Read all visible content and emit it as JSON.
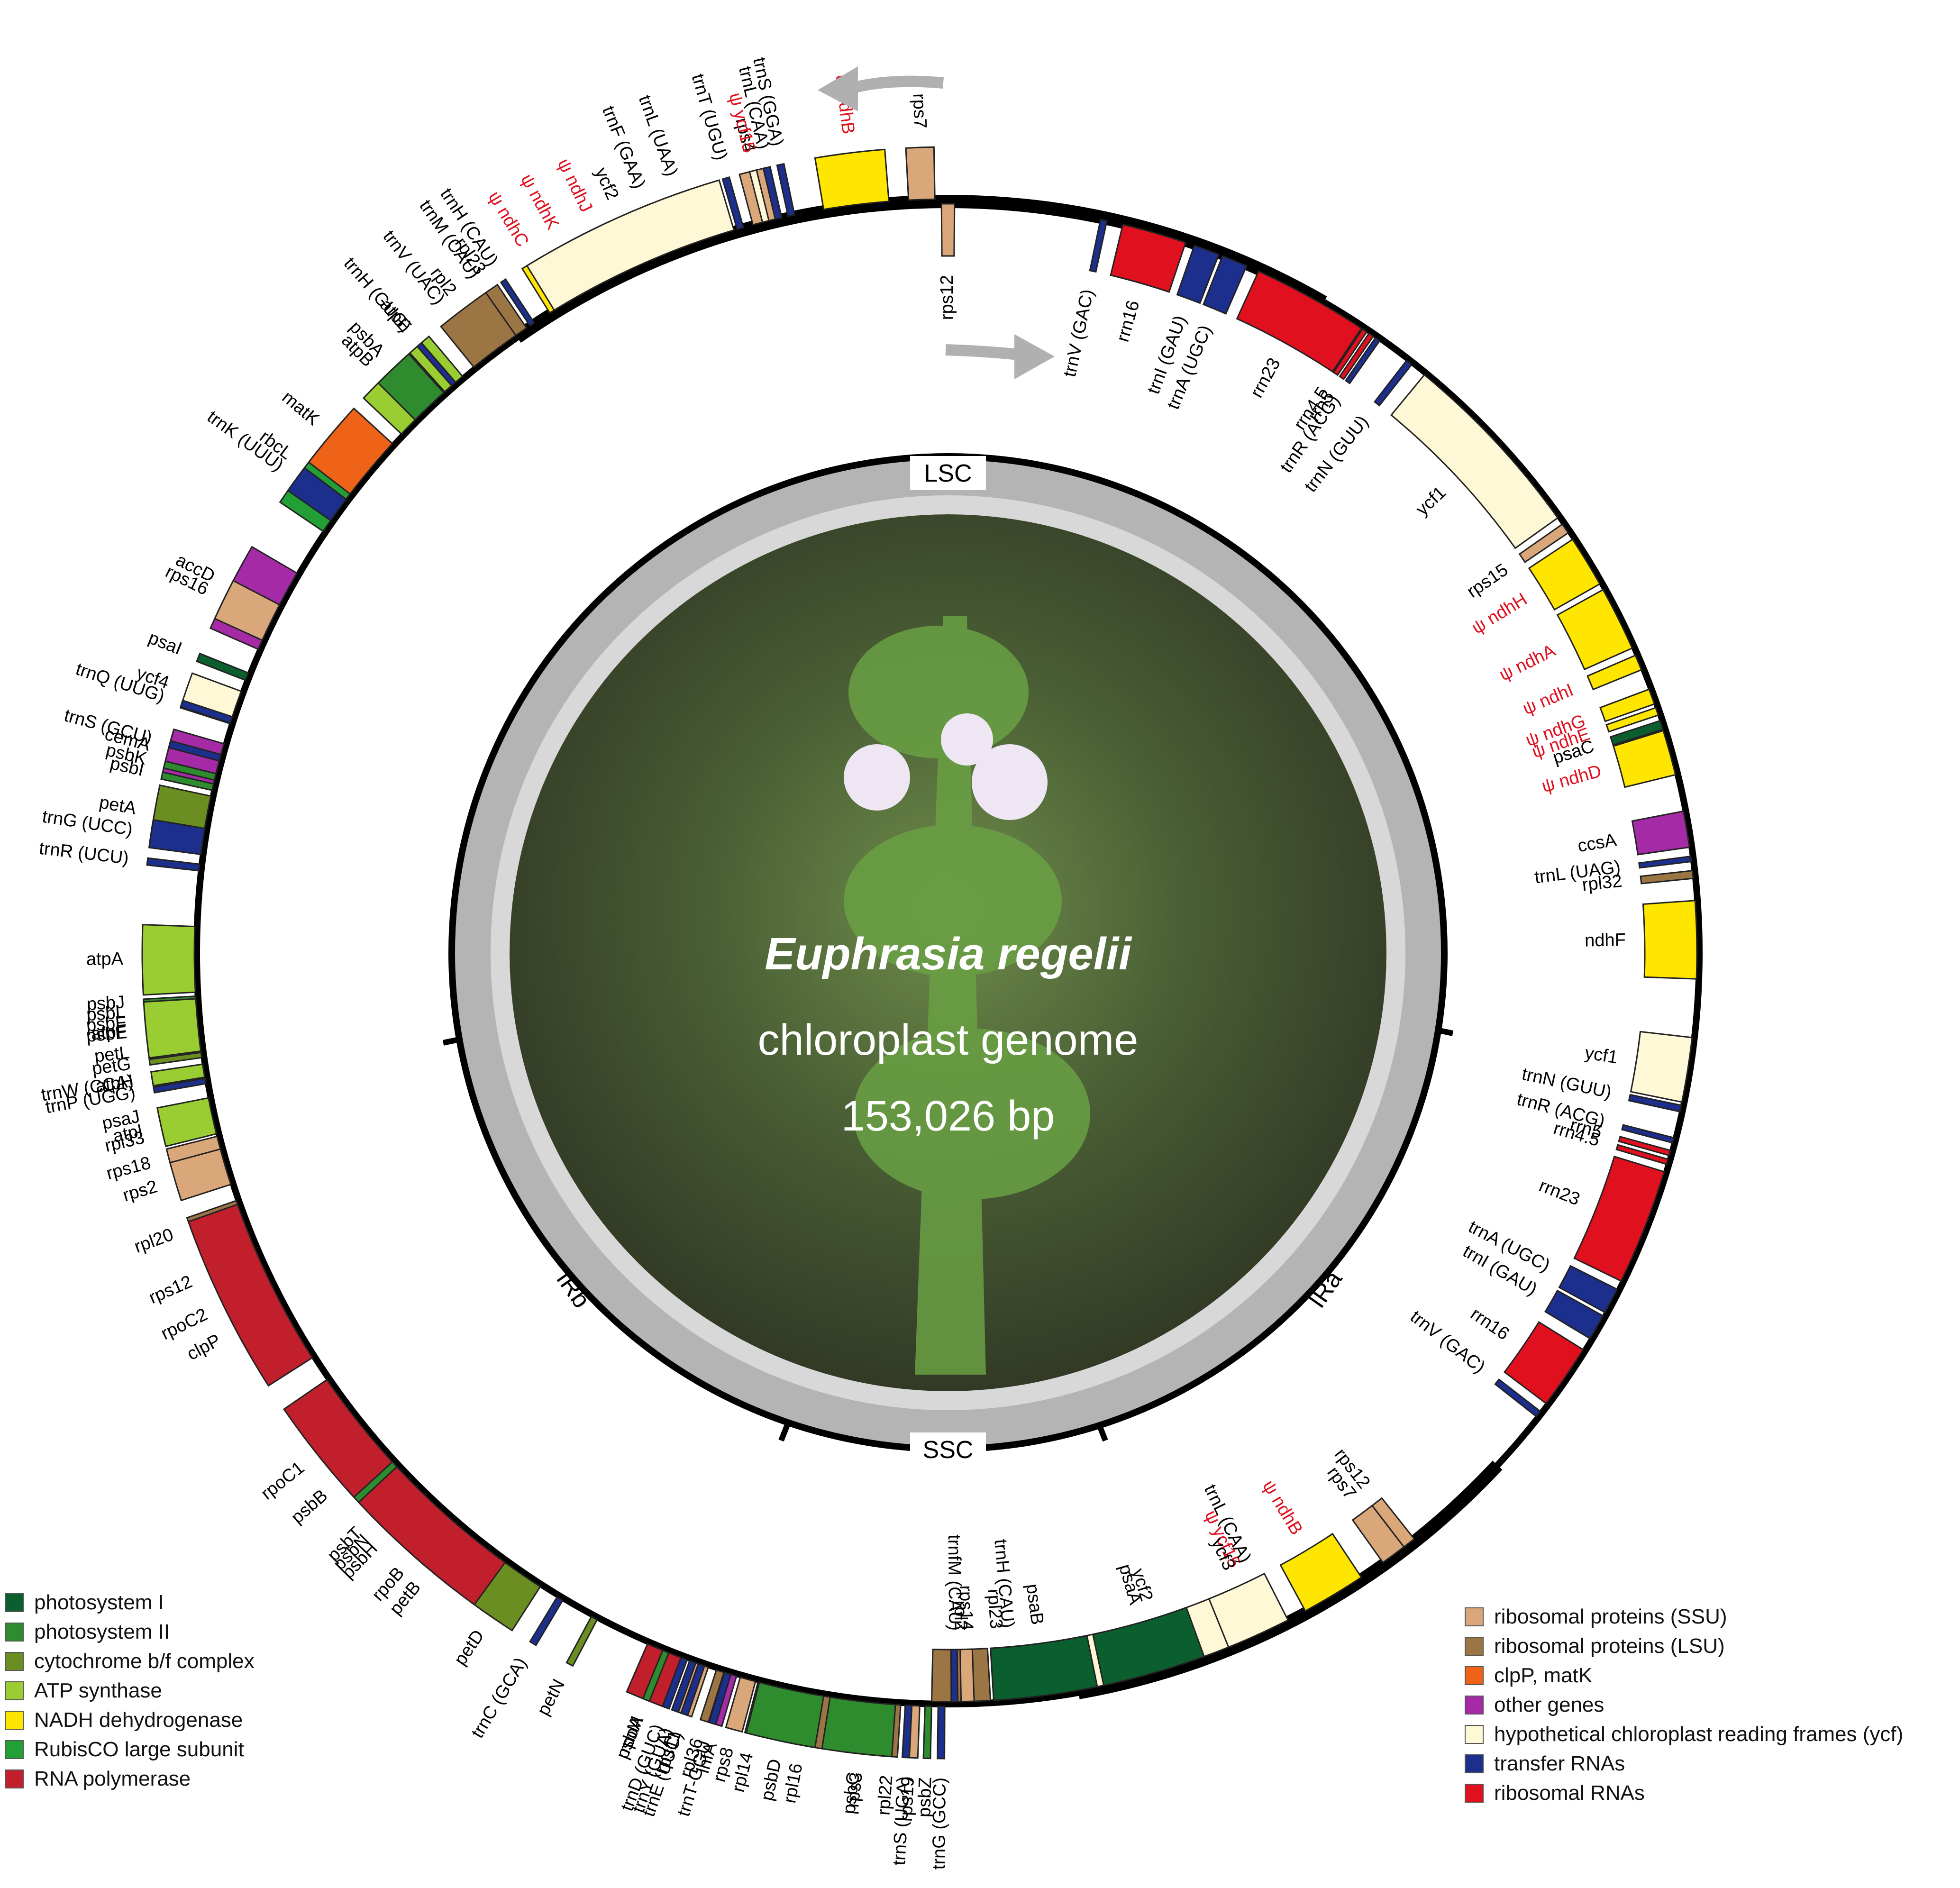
{
  "title": {
    "species": "Euphrasia regelii",
    "subtitle": "chloroplast genome",
    "length": "153,026 bp"
  },
  "regions": [
    {
      "label": "LSC"
    },
    {
      "label": "IRa"
    },
    {
      "label": "SSC"
    },
    {
      "label": "IRb"
    }
  ],
  "legend_left": [
    {
      "label": "photosystem I",
      "color": "#0b5e2e"
    },
    {
      "label": "photosystem II",
      "color": "#2e8b2e"
    },
    {
      "label": "cytochrome b/f complex",
      "color": "#6b8e23"
    },
    {
      "label": "ATP synthase",
      "color": "#9acd32"
    },
    {
      "label": "NADH dehydrogenase",
      "color": "#ffe600"
    },
    {
      "label": "RubisCO large subunit",
      "color": "#22a035"
    },
    {
      "label": "RNA polymerase",
      "color": "#c01f2b"
    }
  ],
  "legend_right": [
    {
      "label": "ribosomal proteins (SSU)",
      "color": "#d9a77a"
    },
    {
      "label": "ribosomal proteins (LSU)",
      "color": "#9c7545"
    },
    {
      "label": "clpP, matK",
      "color": "#ee6318"
    },
    {
      "label": "other genes",
      "color": "#a52aa5"
    },
    {
      "label": "hypothetical chloroplast reading frames (ycf)",
      "color": "#fff8d6"
    },
    {
      "label": "transfer RNAs",
      "color": "#1c2f8c"
    },
    {
      "label": "ribosomal RNAs",
      "color": "#e0101e"
    }
  ],
  "genes": [
    {
      "name": "trnS (GGA)",
      "cat": "trna",
      "a": -12.0,
      "w": 0.5
    },
    {
      "name": "trnL (UAA)",
      "cat": "trna",
      "a": -19.6,
      "w": 0.6
    },
    {
      "name": "trnF (GAA)",
      "cat": "trna",
      "a": -22.0,
      "w": 0.5
    },
    {
      "name": "trnM (CAU)",
      "cat": "trna",
      "a": -35.0,
      "w": 0.5
    },
    {
      "name": "ψ ndhJ",
      "cat": "ndh",
      "a": -26.0,
      "w": 2.2,
      "pseudo": true
    },
    {
      "name": "ψ ndhK",
      "cat": "ndh",
      "a": -28.6,
      "w": 2.2,
      "pseudo": true
    },
    {
      "name": "ψ ndhC",
      "cat": "ndh",
      "a": -31.0,
      "w": 1.8,
      "pseudo": true
    },
    {
      "name": "rps4",
      "cat": "ssu",
      "a": -14.0,
      "w": 2.0
    },
    {
      "name": "trnT (UGU)",
      "cat": "trna",
      "a": -16.0,
      "w": 0.5
    },
    {
      "name": "trnV (UAC)",
      "cat": "trna",
      "a": -38.0,
      "w": 0.6
    },
    {
      "name": "atpE",
      "cat": "atp",
      "a": -41.0,
      "w": 1.8
    },
    {
      "name": "atpB",
      "cat": "atp",
      "a": -44.5,
      "w": 4.0
    },
    {
      "name": "rbcL",
      "cat": "rubisco",
      "a": -53.0,
      "w": 6.0
    },
    {
      "name": "accD",
      "cat": "other",
      "a": -63.0,
      "w": 6.5
    },
    {
      "name": "psaI",
      "cat": "ps1",
      "a": -68.5,
      "w": 0.6
    },
    {
      "name": "ycf4",
      "cat": "ycf",
      "a": -71.0,
      "w": 2.6
    },
    {
      "name": "cemA",
      "cat": "other",
      "a": -75.5,
      "w": 3.2
    },
    {
      "name": "petA",
      "cat": "cyt",
      "a": -80.0,
      "w": 4.0
    },
    {
      "name": "psbJ",
      "cat": "ps2",
      "a": -93.5,
      "w": 0.4
    },
    {
      "name": "psbL",
      "cat": "ps2",
      "a": -94.2,
      "w": 0.4
    },
    {
      "name": "psbF",
      "cat": "ps2",
      "a": -94.9,
      "w": 0.4
    },
    {
      "name": "psbE",
      "cat": "ps2",
      "a": -95.6,
      "w": 0.5
    },
    {
      "name": "petL",
      "cat": "cyt",
      "a": -97.0,
      "w": 0.4
    },
    {
      "name": "petG",
      "cat": "cyt",
      "a": -97.8,
      "w": 0.4
    },
    {
      "name": "trnW (CCA)",
      "cat": "trna",
      "a": -99.0,
      "w": 0.4
    },
    {
      "name": "trnP (UGG)",
      "cat": "trna",
      "a": -99.8,
      "w": 0.4
    },
    {
      "name": "psaJ",
      "cat": "ps1",
      "a": -101.5,
      "w": 0.5
    },
    {
      "name": "rpl33",
      "cat": "lsu",
      "a": -103.0,
      "w": 1.0
    },
    {
      "name": "rps18",
      "cat": "ssu",
      "a": -104.8,
      "w": 1.4
    },
    {
      "name": "rpl20",
      "cat": "lsu",
      "a": -110.0,
      "w": 1.6
    },
    {
      "name": "rps12",
      "cat": "ssu",
      "a": -113.5,
      "w": 0.7
    },
    {
      "name": "clpP",
      "cat": "clp",
      "a": -118.0,
      "w": 5.0
    },
    {
      "name": "psbB",
      "cat": "ps2",
      "a": -131.0,
      "w": 4.5
    },
    {
      "name": "psbT",
      "cat": "ps2",
      "a": -134.5,
      "w": 0.4
    },
    {
      "name": "psbN",
      "cat": "ps2",
      "a": -135.2,
      "w": 0.4
    },
    {
      "name": "psbH",
      "cat": "ps2",
      "a": -136.0,
      "w": 0.4
    },
    {
      "name": "petB",
      "cat": "cyt",
      "a": -140.0,
      "w": 3.8
    },
    {
      "name": "petD",
      "cat": "cyt",
      "a": -145.5,
      "w": 3.5
    },
    {
      "name": "rpoA",
      "cat": "rpo",
      "a": -158.0,
      "w": 3.0
    },
    {
      "name": "rps11",
      "cat": "ssu",
      "a": -160.8,
      "w": 1.3
    },
    {
      "name": "rpl36",
      "cat": "lsu",
      "a": -162.4,
      "w": 0.6
    },
    {
      "name": "infA",
      "cat": "other",
      "a": -163.4,
      "w": 0.6
    },
    {
      "name": "rps8",
      "cat": "ssu",
      "a": -164.6,
      "w": 1.2
    },
    {
      "name": "rpl14",
      "cat": "lsu",
      "a": -166.0,
      "w": 1.2
    },
    {
      "name": "rpl16",
      "cat": "lsu",
      "a": -169.5,
      "w": 3.5
    },
    {
      "name": "rps3",
      "cat": "ssu",
      "a": -173.7,
      "w": 2.5
    },
    {
      "name": "rpl22",
      "cat": "lsu",
      "a": -175.8,
      "w": 1.2
    },
    {
      "name": "rps19",
      "cat": "ssu",
      "a": -177.3,
      "w": 1.1
    },
    {
      "name": "rpl2",
      "cat": "lsu",
      "a": -181.0,
      "w": 4.5
    },
    {
      "name": "rpl23",
      "cat": "lsu",
      "a": -184.0,
      "w": 1.0
    },
    {
      "name": "trnH (CAU)",
      "cat": "trna",
      "a": -185.0,
      "w": 0.4
    },
    {
      "name": "ycf2",
      "cat": "ycf",
      "a": -197.0,
      "w": 15.0
    },
    {
      "name": "ψ ycf15",
      "cat": "ycf",
      "a": -205.0,
      "w": 0.5,
      "pseudo": true
    },
    {
      "name": "trnL (CAA)",
      "cat": "trna",
      "a": -206.0,
      "w": 0.5
    },
    {
      "name": "ψ ndhB",
      "cat": "ndh",
      "a": -211.0,
      "w": 5.0,
      "pseudo": true
    },
    {
      "name": "rps7",
      "cat": "ssu",
      "a": -216.5,
      "w": 2.0
    },
    {
      "name": "rps12",
      "cat": "ssu",
      "a": -218.0,
      "w": 1.0
    },
    {
      "name": "trnV (GAC)",
      "cat": "trna",
      "a": -232.0,
      "w": 0.5
    },
    {
      "name": "rrn16",
      "cat": "rrna",
      "a": -235.5,
      "w": 5.0
    },
    {
      "name": "trnI (GAU)",
      "cat": "trna",
      "a": -240.0,
      "w": 2.0
    },
    {
      "name": "trnA (UGC)",
      "cat": "trna",
      "a": -242.3,
      "w": 2.0
    },
    {
      "name": "rrn23",
      "cat": "rrna",
      "a": -248.5,
      "w": 9.0
    },
    {
      "name": "rrn4.5",
      "cat": "rrna",
      "a": -253.8,
      "w": 0.4
    },
    {
      "name": "rrn5",
      "cat": "rrna",
      "a": -254.5,
      "w": 0.4
    },
    {
      "name": "trnR (ACG)",
      "cat": "trna",
      "a": -255.5,
      "w": 0.4
    },
    {
      "name": "trnN (GUU)",
      "cat": "trna",
      "a": -258.0,
      "w": 0.5
    },
    {
      "name": "ycf1",
      "cat": "ycf",
      "a": -261.0,
      "w": 5.0
    },
    {
      "name": "ndhF",
      "cat": "ndh",
      "a": -271.0,
      "w": 6.0
    },
    {
      "name": "rpl32",
      "cat": "lsu",
      "a": -276.0,
      "w": 0.6
    },
    {
      "name": "trnL (UAG)",
      "cat": "trna",
      "a": -277.2,
      "w": 0.4
    },
    {
      "name": "ccsA",
      "cat": "other",
      "a": -279.5,
      "w": 2.8
    },
    {
      "name": "ψ ndhD",
      "cat": "ndh",
      "a": -285.5,
      "w": 3.5,
      "pseudo": true
    },
    {
      "name": "psaC",
      "cat": "ps1",
      "a": -287.7,
      "w": 0.7
    },
    {
      "name": "ψ ndhE",
      "cat": "ndh",
      "a": -288.8,
      "w": 0.6,
      "pseudo": true
    },
    {
      "name": "ψ ndhG",
      "cat": "ndh",
      "a": -290.0,
      "w": 1.2,
      "pseudo": true
    },
    {
      "name": "ψ ndhI",
      "cat": "ndh",
      "a": -292.8,
      "w": 1.2,
      "pseudo": true
    },
    {
      "name": "ψ ndhA",
      "cat": "ndh",
      "a": -296.5,
      "w": 5.0,
      "pseudo": true
    },
    {
      "name": "ψ ndhH",
      "cat": "ndh",
      "a": -301.5,
      "w": 4.0,
      "pseudo": true
    },
    {
      "name": "rps15",
      "cat": "ssu",
      "a": -304.5,
      "w": 0.8
    },
    {
      "name": "ycf1",
      "cat": "ycf",
      "a": -313.0,
      "w": 15.0
    },
    {
      "name": "trnN (GUU)",
      "cat": "trna",
      "a": -322.0,
      "w": 0.5
    },
    {
      "name": "trnR (ACG)",
      "cat": "trna",
      "a": -325.0,
      "w": 0.4
    },
    {
      "name": "rrn5",
      "cat": "rrna",
      "a": -325.6,
      "w": 0.4
    },
    {
      "name": "rrn4.5",
      "cat": "rrna",
      "a": -326.2,
      "w": 0.4
    },
    {
      "name": "rrn23",
      "cat": "rrna",
      "a": -331.0,
      "w": 9.0
    },
    {
      "name": "trnA (UGC)",
      "cat": "trna",
      "a": -337.5,
      "w": 2.0
    },
    {
      "name": "trnI (GAU)",
      "cat": "trna",
      "a": -339.8,
      "w": 2.0
    },
    {
      "name": "rrn16",
      "cat": "rrna",
      "a": -344.0,
      "w": 5.0
    },
    {
      "name": "trnV (GAC)",
      "cat": "trna",
      "a": -348.0,
      "w": 0.5
    },
    {
      "name": "rps12",
      "cat": "ssu",
      "a": -360.0,
      "w": 1.0
    },
    {
      "name": "rps7",
      "cat": "ssu",
      "a": -362.0,
      "w": 2.0
    },
    {
      "name": "ψ ndhB",
      "cat": "ndh",
      "a": -367.0,
      "w": 5.0,
      "pseudo": true
    },
    {
      "name": "trnL (CAA)",
      "cat": "trna",
      "a": -373.0,
      "w": 0.5
    },
    {
      "name": "ψ ycf15",
      "cat": "ycf",
      "a": -374.0,
      "w": 0.5,
      "pseudo": true
    },
    {
      "name": "ycf2",
      "cat": "ycf",
      "a": -384.0,
      "w": 15.0
    },
    {
      "name": "trnH (CAU)",
      "cat": "trna",
      "a": -393.5,
      "w": 0.4
    },
    {
      "name": "rpl23",
      "cat": "lsu",
      "a": -394.5,
      "w": 1.0
    },
    {
      "name": "rpl2",
      "cat": "lsu",
      "a": -397.0,
      "w": 4.0
    },
    {
      "name": "trnH (GUG)",
      "cat": "trna",
      "a": -401.0,
      "w": 0.4
    },
    {
      "name": "psbA",
      "cat": "ps2",
      "a": -403.5,
      "w": 3.0
    },
    {
      "name": "matK",
      "cat": "clp",
      "a": -410.0,
      "w": 5.0
    },
    {
      "name": "trnK (UUU)",
      "cat": "trna",
      "a": -414.0,
      "w": 2.0
    },
    {
      "name": "rps16",
      "cat": "ssu",
      "a": -424.0,
      "w": 3.0
    },
    {
      "name": "trnQ (UUG)",
      "cat": "trna",
      "a": -432.0,
      "w": 0.5
    },
    {
      "name": "trnS (GCU)",
      "cat": "trna",
      "a": -435.0,
      "w": 0.5
    },
    {
      "name": "psbK",
      "cat": "ps2",
      "a": -436.5,
      "w": 0.5
    },
    {
      "name": "psbI",
      "cat": "ps2",
      "a": -437.3,
      "w": 0.5
    },
    {
      "name": "trnG (UCC)",
      "cat": "trna",
      "a": -441.5,
      "w": 2.0
    },
    {
      "name": "trnR (UCU)",
      "cat": "trna",
      "a": -443.5,
      "w": 0.5
    },
    {
      "name": "atpA",
      "cat": "atp",
      "a": -450.5,
      "w": 5.0
    },
    {
      "name": "atpF",
      "cat": "atp",
      "a": -455.5,
      "w": 4.0
    },
    {
      "name": "atpH",
      "cat": "atp",
      "a": -459.0,
      "w": 1.0
    },
    {
      "name": "atpI",
      "cat": "atp",
      "a": -462.5,
      "w": 2.8
    },
    {
      "name": "rps2",
      "cat": "ssu",
      "a": -466.5,
      "w": 2.8
    },
    {
      "name": "rpoC2",
      "cat": "rpo",
      "a": -476.0,
      "w": 13.0
    },
    {
      "name": "rpoC1",
      "cat": "rpo",
      "a": -488.5,
      "w": 8.0
    },
    {
      "name": "rpoB",
      "cat": "rpo",
      "a": -498.5,
      "w": 11.0
    },
    {
      "name": "trnC (GCA)",
      "cat": "trna",
      "a": -509.0,
      "w": 0.5
    },
    {
      "name": "petN",
      "cat": "cyt",
      "a": -512.0,
      "w": 0.5
    },
    {
      "name": "psbM",
      "cat": "ps2",
      "a": -518.0,
      "w": 0.5
    },
    {
      "name": "trnD (GUC)",
      "cat": "trna",
      "a": -519.5,
      "w": 0.5
    },
    {
      "name": "trnY (GUA)",
      "cat": "trna",
      "a": -520.2,
      "w": 0.5
    },
    {
      "name": "trnE (UUC)",
      "cat": "trna",
      "a": -520.9,
      "w": 0.5
    },
    {
      "name": "trnT-GGU",
      "cat": "trna",
      "a": -523.0,
      "w": 0.5
    },
    {
      "name": "psbD",
      "cat": "ps2",
      "a": -528.0,
      "w": 5.0
    },
    {
      "name": "psbC",
      "cat": "ps2",
      "a": -533.5,
      "w": 5.0
    },
    {
      "name": "trnS (UGA)",
      "cat": "trna",
      "a": -537.0,
      "w": 0.5
    },
    {
      "name": "psbZ",
      "cat": "ps2",
      "a": -538.5,
      "w": 0.5
    },
    {
      "name": "trnG (GCC)",
      "cat": "trna",
      "a": -539.5,
      "w": 0.5
    },
    {
      "name": "trnfM (CAU)",
      "cat": "trna",
      "a": -540.5,
      "w": 0.5
    },
    {
      "name": "rps14",
      "cat": "ssu",
      "a": -541.5,
      "w": 1.0
    },
    {
      "name": "psaB",
      "cat": "ps1",
      "a": -547.5,
      "w": 8.0
    },
    {
      "name": "psaA",
      "cat": "ps1",
      "a": -556.0,
      "w": 8.0
    },
    {
      "name": "ycf3",
      "cat": "ycf",
      "a": -564.5,
      "w": 5.0
    }
  ],
  "cat_colors": {
    "trna": "#1c2f8c",
    "rrna": "#e0101e",
    "ssu": "#d9a77a",
    "lsu": "#9c7545",
    "clp": "#ee6318",
    "other": "#a52aa5",
    "ycf": "#fff8d6",
    "ps1": "#0b5e2e",
    "ps2": "#2e8b2e",
    "cyt": "#6b8e23",
    "atp": "#9acd32",
    "ndh": "#ffe600",
    "rubisco": "#22a035",
    "rpo": "#c01f2b"
  },
  "pseudo_color": "#e0101e"
}
